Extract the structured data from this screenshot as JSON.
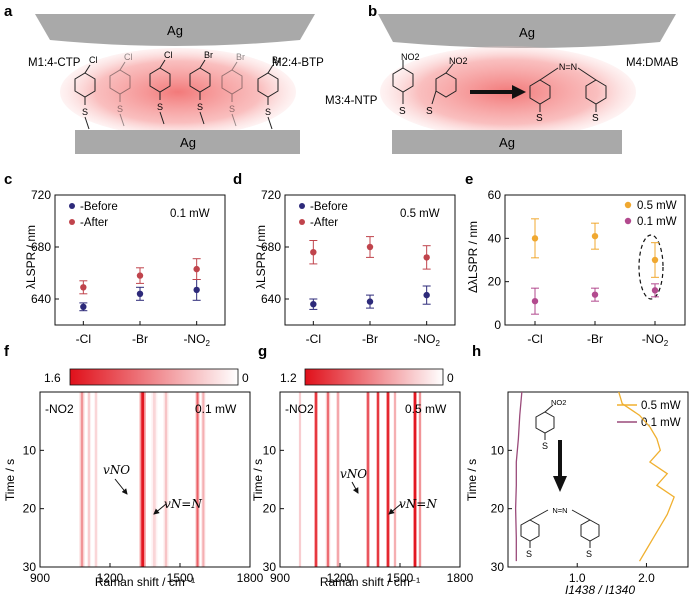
{
  "panels": {
    "a": {
      "letter": "a",
      "top_metal": "Ag",
      "bottom_metal": "Ag",
      "label_left": "M1:4-CTP",
      "label_right": "M2:4-BTP",
      "molecules": [
        {
          "substituent": "Cl",
          "anchor": "S"
        },
        {
          "substituent": "Cl",
          "anchor": "S"
        },
        {
          "substituent": "Cl",
          "anchor": "S"
        },
        {
          "substituent": "Br",
          "anchor": "S"
        },
        {
          "substituent": "Br",
          "anchor": "S"
        },
        {
          "substituent": "Br",
          "anchor": "S"
        }
      ],
      "colors": {
        "metal": "#a9a9a9",
        "hotspot": "#f06262"
      }
    },
    "b": {
      "letter": "b",
      "top_metal": "Ag",
      "bottom_metal": "Ag",
      "label_left": "M3:4-NTP",
      "label_right": "M4:DMAB",
      "group_no2": "NO2",
      "group_azo": "N=N",
      "anchor": "S"
    },
    "c": {
      "letter": "c",
      "ylabel": "λLSPR / nm",
      "power": "0.1 mW",
      "legend": [
        "-Before",
        "-After"
      ],
      "categories": [
        "-Cl",
        "-Br",
        "-NO2"
      ],
      "yticks": [
        "640",
        "680",
        "720"
      ]
    },
    "d": {
      "letter": "d",
      "ylabel": "λLSPR / nm",
      "power": "0.5 mW",
      "legend": [
        "-Before",
        "-After"
      ],
      "categories": [
        "-Cl",
        "-Br",
        "-NO2"
      ],
      "yticks": [
        "640",
        "680",
        "720"
      ]
    },
    "e": {
      "letter": "e",
      "ylabel": "ΔλLSPR / nm",
      "legend": [
        "0.5 mW",
        "0.1 mW"
      ],
      "categories": [
        "-Cl",
        "-Br",
        "-NO2"
      ],
      "yticks": [
        "0",
        "20",
        "40",
        "60"
      ]
    },
    "f": {
      "letter": "f",
      "colorbar_max": "1.6",
      "colorbar_min": "0",
      "sample": "-NO2",
      "power": "0.1 mW",
      "ylabel": "Time / s",
      "xlabel": "Raman shift / cm⁻¹",
      "xticks": [
        "900",
        "1200",
        "1500",
        "1800"
      ],
      "yticks": [
        "10",
        "20",
        "30"
      ],
      "annot_no": "vNO",
      "annot_nn": "vN=N"
    },
    "g": {
      "letter": "g",
      "colorbar_max": "1.2",
      "colorbar_min": "0",
      "sample": "-NO2",
      "power": "0.5 mW",
      "ylabel": "Time / s",
      "xlabel": "Raman shift / cm⁻¹",
      "xticks": [
        "900",
        "1200",
        "1500",
        "1800"
      ],
      "yticks": [
        "10",
        "20",
        "30"
      ],
      "annot_no": "vNO",
      "annot_nn": "vN=N"
    },
    "h": {
      "letter": "h",
      "ylabel": "Time / s",
      "xlabel": "I1438 / I1340",
      "xticks": [
        "1.0",
        "2.0"
      ],
      "yticks": [
        "10",
        "20",
        "30"
      ],
      "legend": [
        "0.5 mW",
        "0.1 mW"
      ],
      "colors": {
        "p05": "#f0b030",
        "p01": "#9a4a7a"
      }
    }
  },
  "chart_data": [
    {
      "id": "c",
      "type": "scatter",
      "title": "0.1 mW",
      "xlabel": "",
      "ylabel": "λLSPR / nm",
      "categories": [
        "-Cl",
        "-Br",
        "-NO2"
      ],
      "ylim": [
        620,
        720
      ],
      "series": [
        {
          "name": "-Before",
          "color": "#2d2a7a",
          "values": [
            634,
            644,
            647
          ],
          "errors": [
            3,
            5,
            8
          ]
        },
        {
          "name": "-After",
          "color": "#c0444c",
          "values": [
            649,
            658,
            663
          ],
          "errors": [
            5,
            6,
            8
          ]
        }
      ]
    },
    {
      "id": "d",
      "type": "scatter",
      "title": "0.5 mW",
      "xlabel": "",
      "ylabel": "λLSPR / nm",
      "categories": [
        "-Cl",
        "-Br",
        "-NO2"
      ],
      "ylim": [
        620,
        720
      ],
      "series": [
        {
          "name": "-Before",
          "color": "#2d2a7a",
          "values": [
            636,
            638,
            643
          ],
          "errors": [
            4,
            5,
            7
          ]
        },
        {
          "name": "-After",
          "color": "#c0444c",
          "values": [
            676,
            680,
            672
          ],
          "errors": [
            9,
            8,
            9
          ]
        }
      ]
    },
    {
      "id": "e",
      "type": "scatter",
      "title": "",
      "xlabel": "",
      "ylabel": "ΔλLSPR / nm",
      "categories": [
        "-Cl",
        "-Br",
        "-NO2"
      ],
      "ylim": [
        0,
        60
      ],
      "series": [
        {
          "name": "0.5 mW",
          "color": "#f0a830",
          "values": [
            40,
            41,
            30
          ],
          "errors": [
            9,
            6,
            8
          ]
        },
        {
          "name": "0.1 mW",
          "color": "#b24a8e",
          "values": [
            11,
            14,
            16
          ],
          "errors": [
            6,
            3,
            3
          ]
        }
      ]
    },
    {
      "id": "f",
      "type": "heatmap",
      "title": "-NO2 0.1 mW",
      "xlabel": "Raman shift / cm⁻¹",
      "ylabel": "Time / s",
      "xlim": [
        900,
        1800
      ],
      "ylim": [
        0,
        30
      ],
      "colorbar": [
        0,
        1.6
      ],
      "bands": [
        {
          "center": 1080,
          "width": 10,
          "intensity": 0.35
        },
        {
          "center": 1110,
          "width": 8,
          "intensity": 0.15
        },
        {
          "center": 1140,
          "width": 8,
          "intensity": 0.12
        },
        {
          "center": 1340,
          "width": 12,
          "intensity": 0.95
        },
        {
          "center": 1390,
          "width": 12,
          "intensity": 0.12
        },
        {
          "center": 1440,
          "width": 10,
          "intensity": 0.18
        },
        {
          "center": 1575,
          "width": 8,
          "intensity": 0.55
        },
        {
          "center": 1600,
          "width": 8,
          "intensity": 0.25
        }
      ]
    },
    {
      "id": "g",
      "type": "heatmap",
      "title": "-NO2 0.5 mW",
      "xlabel": "Raman shift / cm⁻¹",
      "ylabel": "Time / s",
      "xlim": [
        900,
        1800
      ],
      "ylim": [
        0,
        30
      ],
      "colorbar": [
        0,
        1.2
      ],
      "bands": [
        {
          "center": 1000,
          "width": 6,
          "intensity": 0.15
        },
        {
          "center": 1080,
          "width": 9,
          "intensity": 0.75
        },
        {
          "center": 1140,
          "width": 10,
          "intensity": 0.5
        },
        {
          "center": 1190,
          "width": 9,
          "intensity": 0.28
        },
        {
          "center": 1340,
          "width": 9,
          "intensity": 0.6
        },
        {
          "center": 1390,
          "width": 8,
          "intensity": 0.75
        },
        {
          "center": 1440,
          "width": 9,
          "intensity": 0.85
        },
        {
          "center": 1475,
          "width": 7,
          "intensity": 0.25
        },
        {
          "center": 1575,
          "width": 9,
          "intensity": 0.95
        },
        {
          "center": 1600,
          "width": 7,
          "intensity": 0.35
        }
      ]
    },
    {
      "id": "h",
      "type": "line",
      "title": "",
      "xlabel": "I1438 / I1340",
      "ylabel": "Time / s",
      "xlim": [
        0,
        2.6
      ],
      "ylim": [
        0,
        30
      ],
      "series": [
        {
          "name": "0.5 mW",
          "color": "#f0b030",
          "x": [
            1.6,
            1.65,
            1.9,
            2.05,
            2.15,
            2.2,
            2.05,
            2.3,
            2.15,
            2.4,
            2.3,
            2.2,
            2.1,
            2.0,
            1.9
          ],
          "t": [
            0,
            2,
            4,
            6,
            8,
            10,
            12,
            14,
            16,
            18,
            21,
            23,
            25,
            27,
            29
          ]
        },
        {
          "name": "0.1 mW",
          "color": "#9a4a7a",
          "x": [
            0.2,
            0.17,
            0.15,
            0.12,
            0.12,
            0.11,
            0.12,
            0.12
          ],
          "t": [
            0,
            4,
            8,
            12,
            16,
            20,
            25,
            29
          ]
        }
      ]
    }
  ]
}
